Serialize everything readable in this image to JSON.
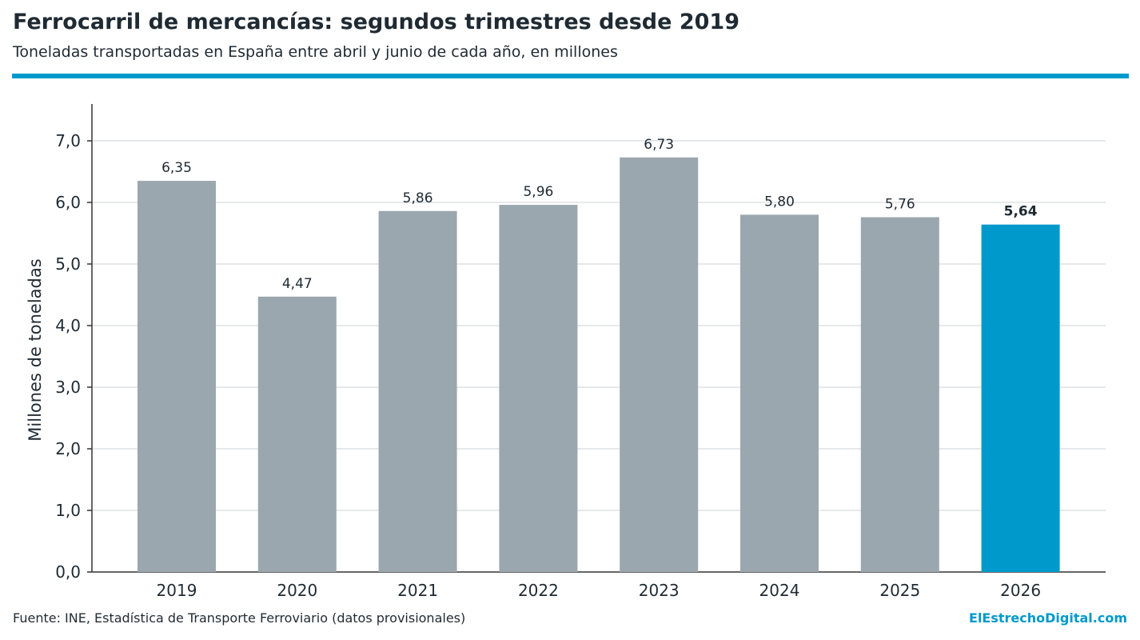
{
  "header": {
    "title": "Ferrocarril de mercancías: segundos trimestres desde 2019",
    "subtitle": "Toneladas transportadas en España entre abril y junio de cada año, en millones"
  },
  "footer": {
    "source": "Fuente: INE, Estadística de Transporte Ferroviario (datos provisionales)",
    "brand": "ElEstrechoDigital.com"
  },
  "colors": {
    "bar": "#9ba7ae",
    "highlight": "#0099cc",
    "accent_rule": "#0099cc",
    "grid": "#e6e8ea",
    "axis": "#333333"
  },
  "chart_data": {
    "type": "bar",
    "categories": [
      "2019",
      "2020",
      "2021",
      "2022",
      "2023",
      "2024",
      "2025",
      "2026"
    ],
    "values": [
      6.35,
      4.47,
      5.86,
      5.96,
      6.73,
      5.8,
      5.76,
      5.64
    ],
    "value_labels": [
      "6,35",
      "4,47",
      "5,86",
      "5,96",
      "6,73",
      "5,80",
      "5,76",
      "5,64"
    ],
    "highlight_category": "2026",
    "ylabel": "Millones de toneladas",
    "ylim": [
      0,
      7.5
    ],
    "yticks": [
      0,
      1,
      2,
      3,
      4,
      5,
      6,
      7
    ],
    "ytick_labels": [
      "0,0",
      "1,0",
      "2,0",
      "3,0",
      "4,0",
      "5,0",
      "6,0",
      "7,0"
    ],
    "grid": true,
    "legend": "none"
  }
}
